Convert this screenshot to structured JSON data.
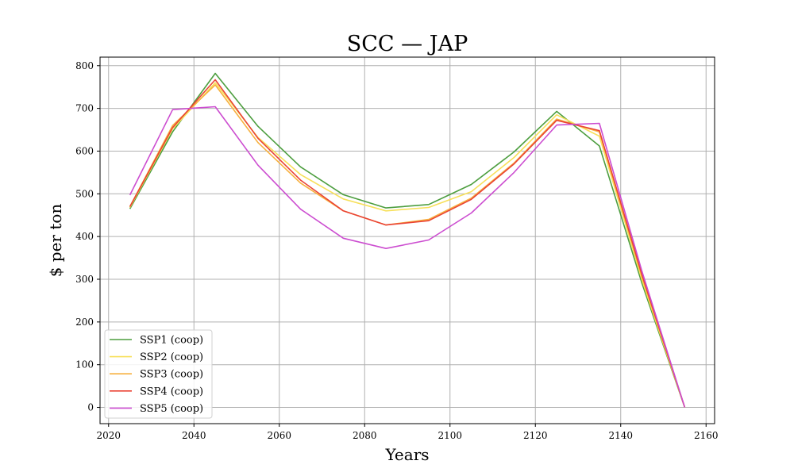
{
  "chart_data": {
    "type": "line",
    "title": "SCC — JAP",
    "xlabel": "Years",
    "ylabel": "$ per ton",
    "xlim": [
      2018,
      2162
    ],
    "ylim": [
      -38,
      820
    ],
    "xticks": [
      2020,
      2040,
      2060,
      2080,
      2100,
      2120,
      2140,
      2160
    ],
    "yticks": [
      0,
      100,
      200,
      300,
      400,
      500,
      600,
      700,
      800
    ],
    "grid": true,
    "legend_position": "lower-left",
    "x": [
      2025,
      2035,
      2045,
      2055,
      2065,
      2075,
      2085,
      2095,
      2105,
      2115,
      2125,
      2135,
      2145,
      2155
    ],
    "series": [
      {
        "name": "SSP1 (coop)",
        "color": "#4d9e3f",
        "values": [
          465,
          645,
          782,
          658,
          563,
          498,
          467,
          475,
          522,
          598,
          693,
          612,
          290,
          0
        ]
      },
      {
        "name": "SSP2 (coop)",
        "color": "#f7e05a",
        "values": [
          468,
          652,
          760,
          632,
          545,
          488,
          460,
          468,
          505,
          585,
          685,
          635,
          298,
          0
        ]
      },
      {
        "name": "SSP3 (coop)",
        "color": "#f7b03e",
        "values": [
          470,
          660,
          755,
          620,
          525,
          460,
          427,
          440,
          490,
          572,
          675,
          645,
          305,
          0
        ]
      },
      {
        "name": "SSP4 (coop)",
        "color": "#ea4335",
        "values": [
          470,
          655,
          767,
          630,
          532,
          460,
          427,
          437,
          487,
          570,
          672,
          648,
          310,
          0
        ]
      },
      {
        "name": "SSP5 (coop)",
        "color": "#cc4dd0",
        "values": [
          497,
          697,
          704,
          567,
          464,
          396,
          372,
          392,
          455,
          550,
          661,
          665,
          318,
          0
        ]
      }
    ]
  }
}
